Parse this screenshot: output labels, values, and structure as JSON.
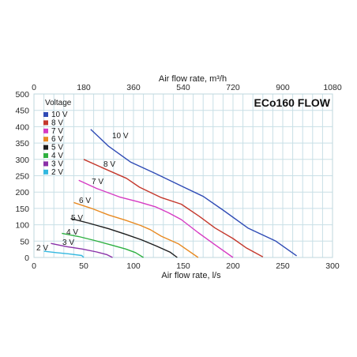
{
  "chart_data": {
    "type": "line",
    "title": "ECo160 FLOW",
    "xlabel": "Air flow rate, l/s",
    "x2label": "Air flow rate, m³/h",
    "ylabel": "",
    "xlim": [
      0,
      300
    ],
    "ylim": [
      0,
      500
    ],
    "x2lim": [
      0,
      1080
    ],
    "xticks": [
      "0",
      "50",
      "100",
      "150",
      "200",
      "250",
      "300"
    ],
    "x2ticks": [
      "0",
      "180",
      "360",
      "540",
      "720",
      "900",
      "1080"
    ],
    "yticks": [
      "0",
      "50",
      "100",
      "150",
      "200",
      "250",
      "300",
      "350",
      "400",
      "450",
      "500"
    ],
    "grid": true,
    "legend_title": "Voltage",
    "legend_position": "top-left",
    "series": [
      {
        "name": "10 V",
        "label": "10 V",
        "color": "#2f4bb5",
        "points": [
          [
            57,
            392
          ],
          [
            75,
            340
          ],
          [
            97,
            292
          ],
          [
            122,
            257
          ],
          [
            150,
            216
          ],
          [
            170,
            187
          ],
          [
            190,
            145
          ],
          [
            215,
            90
          ],
          [
            243,
            50
          ],
          [
            264,
            5
          ]
        ]
      },
      {
        "name": "8 V",
        "label": "8 V",
        "color": "#c4382c",
        "points": [
          [
            50,
            300
          ],
          [
            72,
            270
          ],
          [
            93,
            242
          ],
          [
            106,
            215
          ],
          [
            128,
            183
          ],
          [
            148,
            163
          ],
          [
            166,
            126
          ],
          [
            182,
            90
          ],
          [
            200,
            58
          ],
          [
            213,
            30
          ],
          [
            230,
            2
          ]
        ]
      },
      {
        "name": "7 V",
        "label": "7 V",
        "color": "#d63bc3",
        "points": [
          [
            45,
            236
          ],
          [
            63,
            211
          ],
          [
            86,
            185
          ],
          [
            105,
            170
          ],
          [
            122,
            155
          ],
          [
            135,
            137
          ],
          [
            148,
            116
          ],
          [
            165,
            76
          ],
          [
            180,
            43
          ],
          [
            200,
            0
          ]
        ]
      },
      {
        "name": "6 V",
        "label": "6 V",
        "color": "#e88a22",
        "points": [
          [
            40,
            168
          ],
          [
            58,
            150
          ],
          [
            75,
            130
          ],
          [
            92,
            114
          ],
          [
            107,
            98
          ],
          [
            117,
            85
          ],
          [
            128,
            65
          ],
          [
            145,
            42
          ],
          [
            165,
            0
          ]
        ]
      },
      {
        "name": "5 V",
        "label": "5 V",
        "color": "#1d1d1d",
        "points": [
          [
            37,
            119
          ],
          [
            55,
            105
          ],
          [
            75,
            88
          ],
          [
            92,
            71
          ],
          [
            108,
            54
          ],
          [
            123,
            35
          ],
          [
            137,
            16
          ],
          [
            144,
            0
          ]
        ]
      },
      {
        "name": "4 V",
        "label": "4 V",
        "color": "#2eb040",
        "points": [
          [
            28,
            74
          ],
          [
            45,
            64
          ],
          [
            61,
            52
          ],
          [
            78,
            38
          ],
          [
            92,
            26
          ],
          [
            102,
            15
          ],
          [
            110,
            0
          ]
        ]
      },
      {
        "name": "3 V",
        "label": "3 V",
        "color": "#8a31a8",
        "points": [
          [
            17,
            43
          ],
          [
            33,
            33
          ],
          [
            48,
            26
          ],
          [
            63,
            17
          ],
          [
            73,
            9
          ],
          [
            79,
            0
          ]
        ]
      },
      {
        "name": "2 V",
        "label": "2 V",
        "color": "#33b8e0",
        "points": [
          [
            10,
            19
          ],
          [
            22,
            15
          ],
          [
            35,
            11
          ],
          [
            48,
            6
          ],
          [
            50,
            0
          ]
        ]
      }
    ]
  }
}
